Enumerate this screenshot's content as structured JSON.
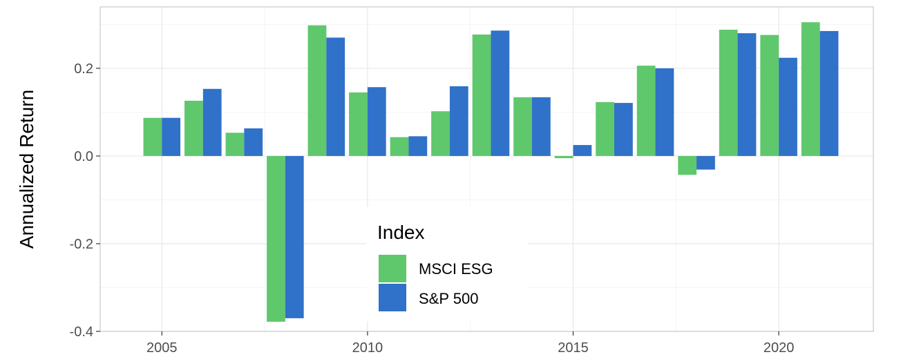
{
  "chart_data": {
    "type": "bar",
    "title": "",
    "xlabel": "",
    "ylabel": "Annualized Return",
    "x": [
      2005,
      2006,
      2007,
      2008,
      2009,
      2010,
      2011,
      2012,
      2013,
      2014,
      2015,
      2016,
      2017,
      2018,
      2019,
      2020,
      2021
    ],
    "xlim": [
      2003.5,
      2022.3
    ],
    "ylim": [
      -0.4,
      0.34
    ],
    "xticks": [
      2005,
      2010,
      2015,
      2020
    ],
    "yticks": [
      -0.4,
      -0.2,
      0.0,
      0.2
    ],
    "ytick_labels": [
      "-0.4",
      "-0.2",
      "0.0",
      "0.2"
    ],
    "grid": true,
    "legend": {
      "title": "Index",
      "placement": "center-bottom"
    },
    "series": [
      {
        "name": "MSCI ESG",
        "color": "#5fc86d",
        "values": [
          0.087,
          0.126,
          0.053,
          -0.378,
          0.298,
          0.145,
          0.043,
          0.102,
          0.277,
          0.134,
          -0.005,
          0.123,
          0.206,
          -0.043,
          0.288,
          0.276,
          0.305
        ]
      },
      {
        "name": "S&P 500",
        "color": "#3071c9",
        "values": [
          0.087,
          0.153,
          0.063,
          -0.37,
          0.27,
          0.157,
          0.045,
          0.159,
          0.286,
          0.134,
          0.025,
          0.121,
          0.2,
          -0.031,
          0.28,
          0.224,
          0.285
        ]
      }
    ]
  }
}
